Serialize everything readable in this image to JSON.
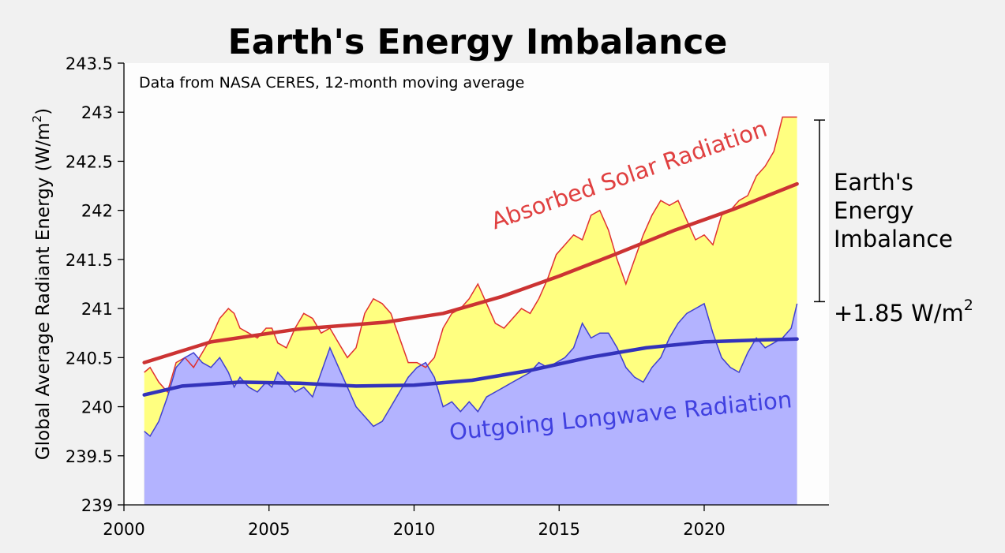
{
  "chart_data": {
    "type": "area",
    "title": "Earth's Energy Imbalance",
    "subtitle": "Data from NASA CERES, 12-month moving average",
    "ylabel_text": "Global Average Radiant Energy (W/m",
    "ylabel_sup": "2",
    "ylabel_close": ")",
    "xlim": [
      2000,
      2024.3
    ],
    "ylim": [
      239,
      243.5
    ],
    "x_ticks": [
      2000,
      2005,
      2010,
      2015,
      2020
    ],
    "x_tick_labels": [
      "2000",
      "2005",
      "2010",
      "2015",
      "2020"
    ],
    "y_ticks": [
      239,
      239.5,
      240,
      240.5,
      241,
      241.5,
      242,
      242.5,
      243,
      243.5
    ],
    "y_tick_labels": [
      "239",
      "239.5",
      "240",
      "240.5",
      "241",
      "241.5",
      "242",
      "242.5",
      "243",
      "243.5"
    ],
    "grid": false,
    "series": [
      {
        "name": "Absorbed Solar Radiation",
        "color": "#e03030",
        "fill": "#ffff80",
        "x": [
          2000.7,
          2000.9,
          2001.2,
          2001.5,
          2001.8,
          2002.1,
          2002.4,
          2002.7,
          2003.0,
          2003.3,
          2003.6,
          2003.8,
          2004.0,
          2004.3,
          2004.6,
          2004.9,
          2005.1,
          2005.3,
          2005.6,
          2005.9,
          2006.2,
          2006.5,
          2006.8,
          2007.1,
          2007.4,
          2007.7,
          2008.0,
          2008.3,
          2008.6,
          2008.9,
          2009.2,
          2009.5,
          2009.8,
          2010.1,
          2010.4,
          2010.7,
          2011.0,
          2011.3,
          2011.6,
          2011.9,
          2012.2,
          2012.5,
          2012.8,
          2013.1,
          2013.4,
          2013.7,
          2014.0,
          2014.3,
          2014.6,
          2014.9,
          2015.2,
          2015.5,
          2015.8,
          2016.1,
          2016.4,
          2016.7,
          2017.0,
          2017.3,
          2017.6,
          2017.9,
          2018.2,
          2018.5,
          2018.8,
          2019.1,
          2019.4,
          2019.7,
          2020.0,
          2020.3,
          2020.6,
          2020.9,
          2021.2,
          2021.5,
          2021.8,
          2022.1,
          2022.4,
          2022.7,
          2023.0,
          2023.2
        ],
        "values": [
          240.35,
          240.4,
          240.25,
          240.15,
          240.45,
          240.5,
          240.4,
          240.55,
          240.7,
          240.9,
          241.0,
          240.95,
          240.8,
          240.75,
          240.7,
          240.8,
          240.8,
          240.65,
          240.6,
          240.8,
          240.95,
          240.9,
          240.75,
          240.8,
          240.65,
          240.5,
          240.6,
          240.95,
          241.1,
          241.05,
          240.95,
          240.7,
          240.45,
          240.45,
          240.4,
          240.5,
          240.8,
          240.95,
          241.0,
          241.1,
          241.25,
          241.05,
          240.85,
          240.8,
          240.9,
          241.0,
          240.95,
          241.1,
          241.3,
          241.55,
          241.65,
          241.75,
          241.7,
          241.95,
          242.0,
          241.8,
          241.5,
          241.25,
          241.5,
          241.75,
          241.95,
          242.1,
          242.05,
          242.1,
          241.9,
          241.7,
          241.75,
          241.65,
          241.95,
          242.0,
          242.1,
          242.15,
          242.35,
          242.45,
          242.6,
          242.95,
          242.95,
          242.95
        ]
      },
      {
        "name": "Outgoing Longwave Radiation",
        "color": "#4040d0",
        "fill": "#b3b3ff",
        "x": [
          2000.7,
          2000.9,
          2001.2,
          2001.5,
          2001.8,
          2002.1,
          2002.4,
          2002.7,
          2003.0,
          2003.3,
          2003.6,
          2003.8,
          2004.0,
          2004.3,
          2004.6,
          2004.9,
          2005.1,
          2005.3,
          2005.6,
          2005.9,
          2006.2,
          2006.5,
          2006.8,
          2007.1,
          2007.4,
          2007.7,
          2008.0,
          2008.3,
          2008.6,
          2008.9,
          2009.2,
          2009.5,
          2009.8,
          2010.1,
          2010.4,
          2010.7,
          2011.0,
          2011.3,
          2011.6,
          2011.9,
          2012.2,
          2012.5,
          2012.8,
          2013.1,
          2013.4,
          2013.7,
          2014.0,
          2014.3,
          2014.6,
          2014.9,
          2015.2,
          2015.5,
          2015.8,
          2016.1,
          2016.4,
          2016.7,
          2017.0,
          2017.3,
          2017.6,
          2017.9,
          2018.2,
          2018.5,
          2018.8,
          2019.1,
          2019.4,
          2019.7,
          2020.0,
          2020.3,
          2020.6,
          2020.9,
          2021.2,
          2021.5,
          2021.8,
          2022.1,
          2022.4,
          2022.7,
          2023.0,
          2023.2
        ],
        "values": [
          239.75,
          239.7,
          239.85,
          240.1,
          240.4,
          240.5,
          240.55,
          240.45,
          240.4,
          240.5,
          240.35,
          240.2,
          240.3,
          240.2,
          240.15,
          240.25,
          240.2,
          240.35,
          240.25,
          240.15,
          240.2,
          240.1,
          240.35,
          240.6,
          240.4,
          240.2,
          240.0,
          239.9,
          239.8,
          239.85,
          240.0,
          240.15,
          240.3,
          240.4,
          240.45,
          240.3,
          240.0,
          240.05,
          239.95,
          240.05,
          239.95,
          240.1,
          240.15,
          240.2,
          240.25,
          240.3,
          240.35,
          240.45,
          240.4,
          240.45,
          240.5,
          240.6,
          240.85,
          240.7,
          240.75,
          240.75,
          240.6,
          240.4,
          240.3,
          240.25,
          240.4,
          240.5,
          240.7,
          240.85,
          240.95,
          241.0,
          241.05,
          240.75,
          240.5,
          240.4,
          240.35,
          240.55,
          240.7,
          240.6,
          240.65,
          240.7,
          240.8,
          241.05
        ]
      }
    ],
    "trend_absorbed": {
      "x": [
        2000.7,
        2003,
        2006,
        2009,
        2011,
        2013,
        2015,
        2017,
        2019,
        2021,
        2023.2
      ],
      "values": [
        240.45,
        240.66,
        240.79,
        240.86,
        240.95,
        241.12,
        241.33,
        241.56,
        241.8,
        242.01,
        242.27
      ]
    },
    "trend_outgoing": {
      "x": [
        2000.7,
        2002,
        2004,
        2006,
        2008,
        2010,
        2012,
        2014,
        2016,
        2018,
        2020,
        2022,
        2023.2
      ],
      "values": [
        240.12,
        240.21,
        240.25,
        240.24,
        240.21,
        240.22,
        240.27,
        240.37,
        240.5,
        240.6,
        240.66,
        240.68,
        240.69
      ]
    },
    "annotations": {
      "absorbed_label": "Absorbed Solar Radiation",
      "outgoing_label": "Outgoing Longwave Radiation",
      "imbalance_line1": "Earth's",
      "imbalance_line2": "Energy",
      "imbalance_line3": "Imbalance",
      "imbalance_value": "+1.85 W/m",
      "imbalance_sup": "2",
      "bracket_range": [
        241.07,
        242.92
      ]
    }
  }
}
